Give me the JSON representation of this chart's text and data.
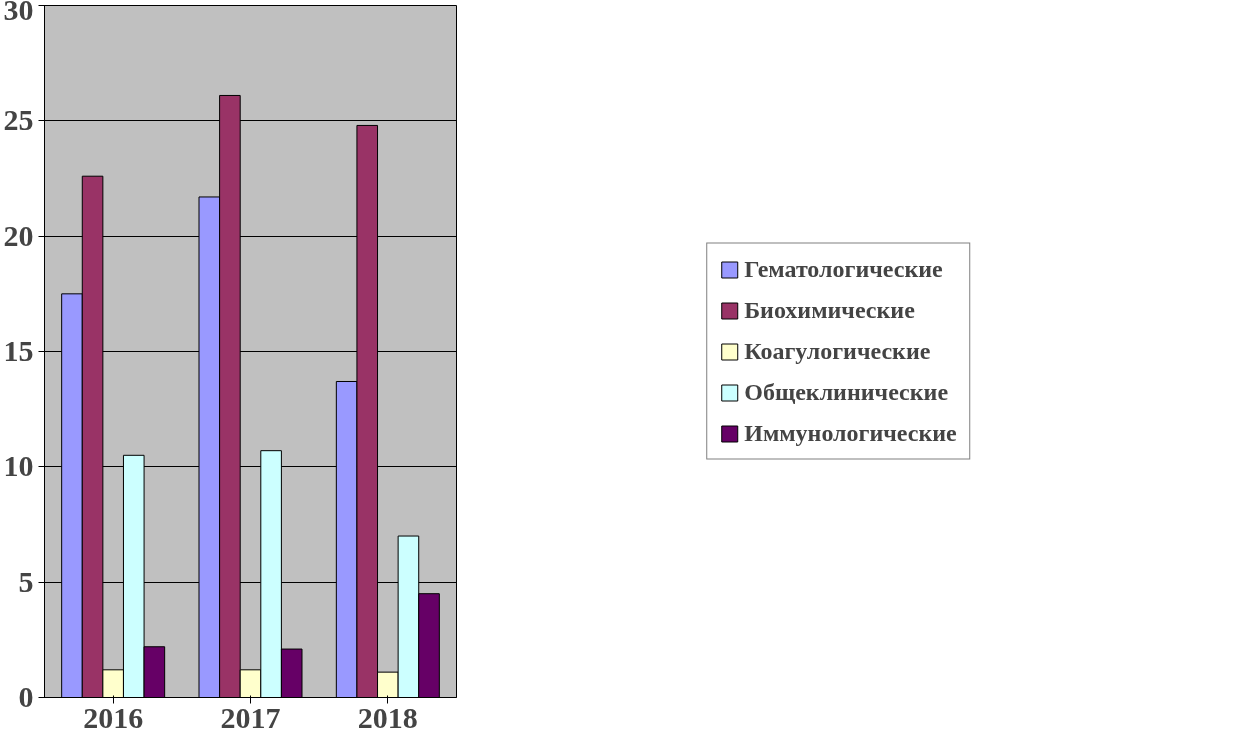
{
  "chart_data": {
    "type": "bar",
    "categories": [
      "2016",
      "2017",
      "2018"
    ],
    "series": [
      {
        "name": "Гематологические",
        "color": "#9999ff",
        "values": [
          17.5,
          21.7,
          13.7
        ]
      },
      {
        "name": "Биохимические",
        "color": "#993366",
        "values": [
          22.6,
          26.1,
          24.8
        ]
      },
      {
        "name": "Коагулогические",
        "color": "#ffffcc",
        "values": [
          1.2,
          1.2,
          1.1
        ]
      },
      {
        "name": "Общеклинические",
        "color": "#ccffff",
        "values": [
          10.5,
          10.7,
          7.0
        ]
      },
      {
        "name": "Иммунологические",
        "color": "#660066",
        "values": [
          2.2,
          2.1,
          4.5
        ]
      }
    ],
    "ylim": [
      0,
      30
    ],
    "yticks": [
      0,
      5,
      10,
      15,
      20,
      25,
      30
    ],
    "grid": "y",
    "legend": "right"
  }
}
